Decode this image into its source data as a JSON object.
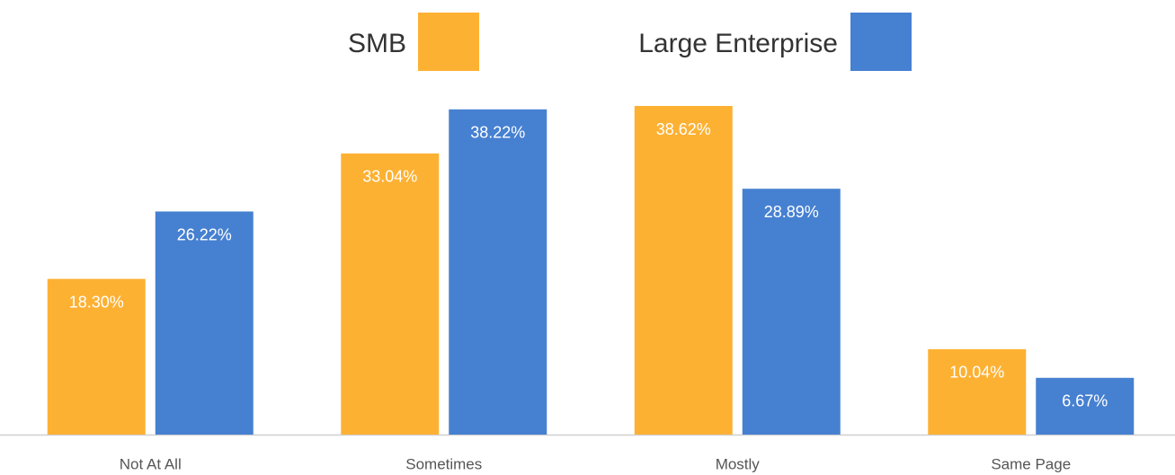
{
  "chart_data": {
    "type": "bar",
    "categories": [
      "Not At All",
      "Sometimes",
      "Mostly",
      "Same Page"
    ],
    "series": [
      {
        "name": "SMB",
        "color": "#FDB133",
        "values": [
          18.3,
          33.04,
          38.62,
          10.04
        ],
        "value_labels": [
          "18.30%",
          "33.04%",
          "38.62%",
          "10.04%"
        ]
      },
      {
        "name": "Large Enterprise",
        "color": "#4680D1",
        "values": [
          26.22,
          38.22,
          28.89,
          6.67
        ],
        "value_labels": [
          "26.22%",
          "38.22%",
          "28.89%",
          "6.67%"
        ]
      }
    ]
  }
}
